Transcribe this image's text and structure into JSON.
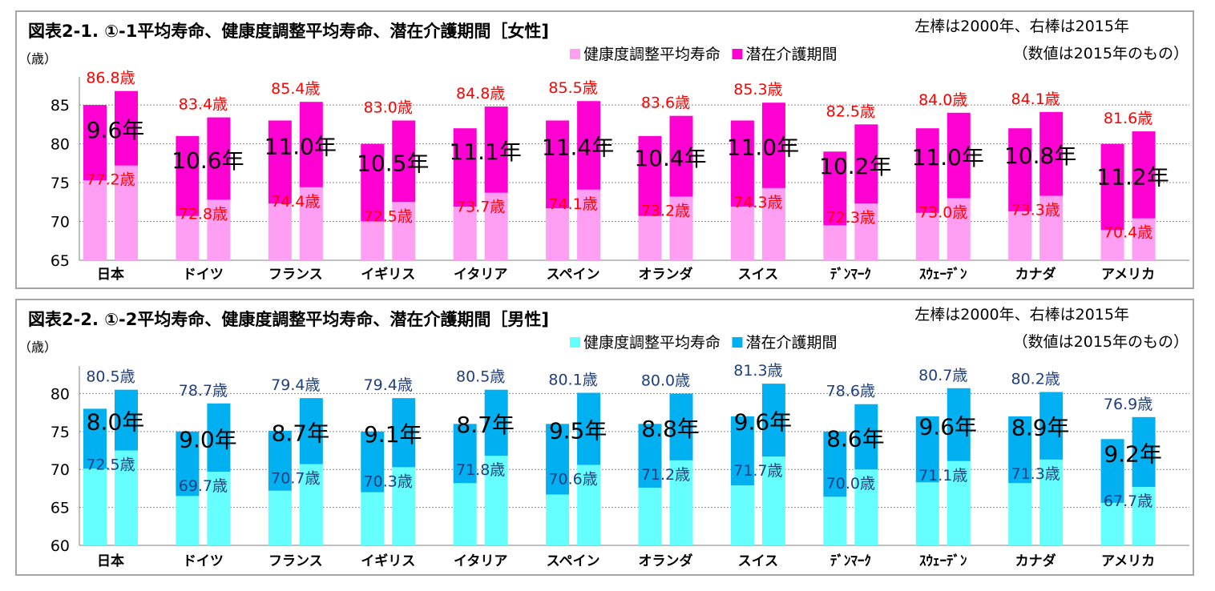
{
  "chart_data": [
    {
      "type": "bar",
      "stacked": true,
      "title": "図表2-1. ①-1平均寿命、健康度調整平均寿命、潜在介護期間［女性]",
      "note_left_right": "左棒は2000年、右棒は2015年",
      "note_values": "（数値は2015年のもの）",
      "ylabel": "（歳）",
      "ylim": [
        65,
        88
      ],
      "yticks": [
        65,
        70,
        75,
        80,
        85
      ],
      "grid": true,
      "legend_position": "top-right",
      "categories": [
        "日本",
        "ドイツ",
        "フランス",
        "イギリス",
        "イタリア",
        "スペイン",
        "オランダ",
        "スイス",
        "ﾃﾞﾝﾏｰｸ",
        "ｽｳｪｰﾃﾞﾝ",
        "カナダ",
        "アメリカ"
      ],
      "series": [
        {
          "name": "健康度調整平均寿命",
          "color": "#ff9ff3",
          "values_2000": [
            75.3,
            70.7,
            72.3,
            70.0,
            71.9,
            71.7,
            70.7,
            71.9,
            69.5,
            71.1,
            71.3,
            68.9
          ],
          "values_2015": [
            77.2,
            72.8,
            74.4,
            72.5,
            73.7,
            74.1,
            73.2,
            74.3,
            72.3,
            73.0,
            73.3,
            70.4
          ]
        },
        {
          "name": "潜在介護期間",
          "color": "#ff00d2",
          "values_2000": [
            9.7,
            10.3,
            10.7,
            10.0,
            10.1,
            11.3,
            10.3,
            11.1,
            9.5,
            10.9,
            10.7,
            11.1
          ],
          "values_2015": [
            9.6,
            10.6,
            11.0,
            10.5,
            11.1,
            11.4,
            10.4,
            11.0,
            10.2,
            11.0,
            10.8,
            11.2
          ]
        }
      ],
      "total_2015": [
        86.8,
        83.4,
        85.4,
        83.0,
        84.8,
        85.5,
        83.6,
        85.3,
        82.5,
        84.0,
        84.1,
        81.6
      ],
      "total_labels": [
        "86.8歳",
        "83.4歳",
        "85.4歳",
        "83.0歳",
        "84.8歳",
        "85.5歳",
        "83.6歳",
        "85.3歳",
        "82.5歳",
        "84.0歳",
        "84.1歳",
        "81.6歳"
      ],
      "healthy_labels": [
        "77.2歳",
        "72.8歳",
        "74.4歳",
        "72.5歳",
        "73.7歳",
        "74.1歳",
        "73.2歳",
        "74.3歳",
        "72.3歳",
        "73.0歳",
        "73.3歳",
        "70.4歳"
      ],
      "care_labels": [
        "9.6年",
        "10.6年",
        "11.0年",
        "10.5年",
        "11.1年",
        "11.4年",
        "10.4年",
        "11.0年",
        "10.2年",
        "11.0年",
        "10.8年",
        "11.2年"
      ],
      "value_label_color": "#ff0000"
    },
    {
      "type": "bar",
      "stacked": true,
      "title": "図表2-2. ①-2平均寿命、健康度調整平均寿命、潜在介護期間［男性]",
      "note_left_right": "左棒は2000年、右棒は2015年",
      "note_values": "（数値は2015年のもの）",
      "ylabel": "（歳）",
      "ylim": [
        60,
        83
      ],
      "yticks": [
        60,
        65,
        70,
        75,
        80
      ],
      "grid": true,
      "legend_position": "top-right",
      "categories": [
        "日本",
        "ドイツ",
        "フランス",
        "イギリス",
        "イタリア",
        "スペイン",
        "オランダ",
        "スイス",
        "ﾃﾞﾝﾏｰｸ",
        "ｽｳｪｰﾃﾞﾝ",
        "カナダ",
        "アメリカ"
      ],
      "series": [
        {
          "name": "健康度調整平均寿命",
          "color": "#66ffff",
          "values_2000": [
            70.1,
            66.5,
            67.2,
            67.0,
            68.2,
            66.7,
            67.6,
            67.9,
            66.4,
            68.3,
            68.2,
            65.6
          ],
          "values_2015": [
            72.5,
            69.7,
            70.7,
            70.3,
            71.8,
            70.6,
            71.2,
            71.7,
            70.0,
            71.1,
            71.3,
            67.7
          ]
        },
        {
          "name": "潜在介護期間",
          "color": "#00b0f0",
          "values_2000": [
            7.9,
            8.5,
            7.9,
            8.0,
            7.8,
            9.3,
            8.4,
            9.1,
            8.6,
            8.7,
            8.8,
            8.4
          ],
          "values_2015": [
            8.0,
            9.0,
            8.7,
            9.1,
            8.7,
            9.5,
            8.8,
            9.6,
            8.6,
            9.6,
            8.9,
            9.2
          ]
        }
      ],
      "total_2015": [
        80.5,
        78.7,
        79.4,
        79.4,
        80.5,
        80.1,
        80.0,
        81.3,
        78.6,
        80.7,
        80.2,
        76.9
      ],
      "total_labels": [
        "80.5歳",
        "78.7歳",
        "79.4歳",
        "79.4歳",
        "80.5歳",
        "80.1歳",
        "80.0歳",
        "81.3歳",
        "78.6歳",
        "80.7歳",
        "80.2歳",
        "76.9歳"
      ],
      "healthy_labels": [
        "72.5歳",
        "69.7歳",
        "70.7歳",
        "70.3歳",
        "71.8歳",
        "70.6歳",
        "71.2歳",
        "71.7歳",
        "70.0歳",
        "71.1歳",
        "71.3歳",
        "67.7歳"
      ],
      "care_labels": [
        "8.0年",
        "9.0年",
        "8.7年",
        "9.1年",
        "8.7年",
        "9.5年",
        "8.8年",
        "9.6年",
        "8.6年",
        "9.6年",
        "8.9年",
        "9.2年"
      ],
      "value_label_color": "#1f3f7f"
    }
  ]
}
